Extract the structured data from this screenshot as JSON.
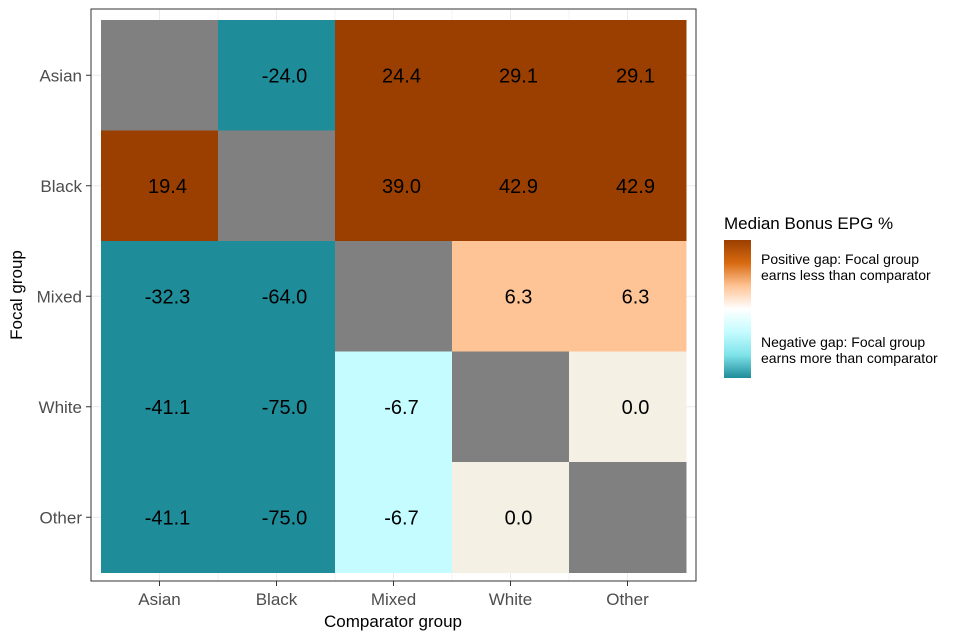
{
  "chart_data": {
    "type": "heatmap",
    "xlabel": "Comparator group",
    "ylabel": "Focal group",
    "x_categories": [
      "Asian",
      "Black",
      "Mixed",
      "White",
      "Other"
    ],
    "y_categories": [
      "Asian",
      "Black",
      "Mixed",
      "White",
      "Other"
    ],
    "values": [
      [
        null,
        -24.0,
        24.4,
        29.1,
        29.1
      ],
      [
        19.4,
        null,
        39.0,
        42.9,
        42.9
      ],
      [
        -32.3,
        -64.0,
        null,
        6.3,
        6.3
      ],
      [
        -41.1,
        -75.0,
        -6.7,
        null,
        0.0
      ],
      [
        -41.1,
        -75.0,
        -6.7,
        0.0,
        null
      ]
    ],
    "labels": [
      [
        "",
        "-24.0",
        "24.4",
        "29.1",
        "29.1"
      ],
      [
        "19.4",
        "",
        "39.0",
        "42.9",
        "42.9"
      ],
      [
        "-32.3",
        "-64.0",
        "",
        "6.3",
        "6.3"
      ],
      [
        "-41.1",
        "-75.0",
        "-6.7",
        "",
        "0.0"
      ],
      [
        "-41.1",
        "-75.0",
        "-6.7",
        "0.0",
        ""
      ]
    ],
    "colors": {
      "missing": "#808080",
      "strong_positive": "#9a3f00",
      "mild_positive": "#ffc495",
      "neutral": "#f4f1e4",
      "mild_negative": "#c4fcff",
      "strong_negative": "#1f8c99",
      "grid": "#ebebeb",
      "panel_border": "#333333"
    },
    "legend": {
      "title": "Median Bonus EPG %",
      "positive_label_line1": "Positive gap: Focal group",
      "positive_label_line2": "earns less than comparator",
      "negative_label_line1": "Negative gap: Focal group",
      "negative_label_line2": "earns more than comparator",
      "gradient_stops": [
        "#9a3f00",
        "#d86a10",
        "#ffc495",
        "#ffffff",
        "#c4fcff",
        "#7fe3ea",
        "#1f8c99"
      ],
      "position": "right"
    }
  }
}
